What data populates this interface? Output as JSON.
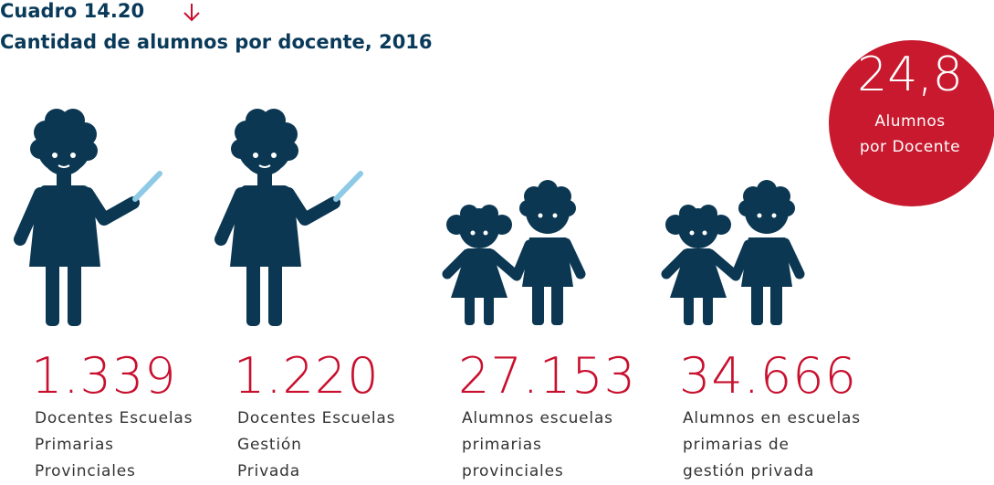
{
  "header": {
    "kicker": "Cuadro 14.20",
    "title": "Cantidad de alumnos por docente, 2016"
  },
  "badge": {
    "value": "24,8",
    "label_lines": [
      "Alumnos",
      "por Docente"
    ]
  },
  "items": [
    {
      "value": "1.339",
      "label_lines": [
        "Docentes Escuelas",
        "Primarias",
        "Provinciales"
      ]
    },
    {
      "value": "1.220",
      "label_lines": [
        "Docentes Escuelas",
        "Gestión",
        "Privada"
      ]
    },
    {
      "value": "27.153",
      "label_lines": [
        "Alumnos escuelas",
        "primarias",
        "provinciales"
      ]
    },
    {
      "value": "34.666",
      "label_lines": [
        "Alumnos en escuelas",
        "primarias de",
        "gestión privada"
      ]
    }
  ]
}
